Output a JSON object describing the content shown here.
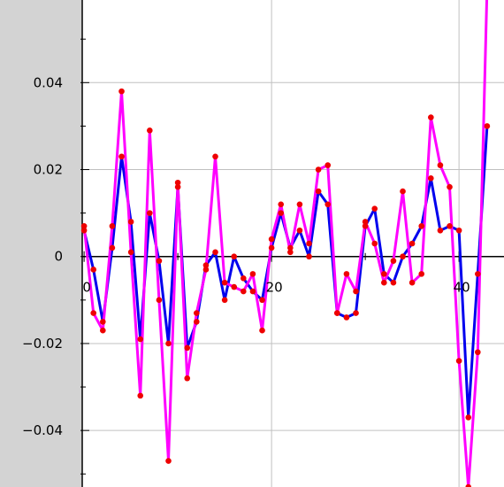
{
  "chart_data": {
    "type": "line",
    "title": "",
    "xlabel": "",
    "ylabel": "",
    "xlim": [
      -0.2,
      44.8
    ],
    "ylim": [
      -0.053,
      0.059
    ],
    "grid": true,
    "x_ticks": [
      0,
      20,
      40
    ],
    "y_ticks": [
      -0.04,
      -0.02,
      0,
      0.02,
      0.04
    ],
    "x_tick_labels": [
      "0",
      "20",
      "40"
    ],
    "y_tick_labels": [
      "−0.04",
      "−0.02",
      "0",
      "0.02",
      "0.04"
    ],
    "x": [
      0,
      1,
      2,
      3,
      4,
      5,
      6,
      7,
      8,
      9,
      10,
      11,
      12,
      13,
      14,
      15,
      16,
      17,
      18,
      19,
      20,
      21,
      22,
      23,
      24,
      25,
      26,
      27,
      28,
      29,
      30,
      31,
      32,
      33,
      34,
      35,
      36,
      37,
      38,
      39,
      40,
      41,
      42,
      43
    ],
    "series": [
      {
        "color": "#0000ee",
        "values": [
          0.006,
          -0.003,
          -0.015,
          0.002,
          0.023,
          0.008,
          -0.019,
          0.01,
          -0.001,
          -0.02,
          0.016,
          -0.021,
          -0.015,
          -0.002,
          0.001,
          -0.01,
          0.0,
          -0.005,
          -0.008,
          -0.01,
          0.002,
          0.01,
          0.002,
          0.006,
          0.0,
          0.015,
          0.012,
          -0.013,
          -0.014,
          -0.013,
          0.007,
          0.011,
          -0.004,
          -0.006,
          0.0,
          0.003,
          0.007,
          0.018,
          0.006,
          0.007,
          0.006,
          -0.037,
          -0.004,
          0.03
        ]
      },
      {
        "color": "#ff00ff",
        "values": [
          0.007,
          -0.013,
          -0.017,
          0.007,
          0.038,
          0.001,
          -0.032,
          0.029,
          -0.01,
          -0.047,
          0.017,
          -0.028,
          -0.013,
          -0.003,
          0.023,
          -0.006,
          -0.007,
          -0.008,
          -0.004,
          -0.017,
          0.004,
          0.012,
          0.001,
          0.012,
          0.003,
          0.02,
          0.021,
          -0.013,
          -0.004,
          -0.008,
          0.008,
          0.003,
          -0.006,
          -0.001,
          0.015,
          -0.006,
          -0.004,
          0.032,
          0.021,
          0.016,
          -0.024,
          -0.053,
          -0.022,
          0.062
        ]
      }
    ],
    "marker_color": "#ee0000",
    "background_color": "#ffffff",
    "left_margin_color": "#d3d3d3"
  }
}
